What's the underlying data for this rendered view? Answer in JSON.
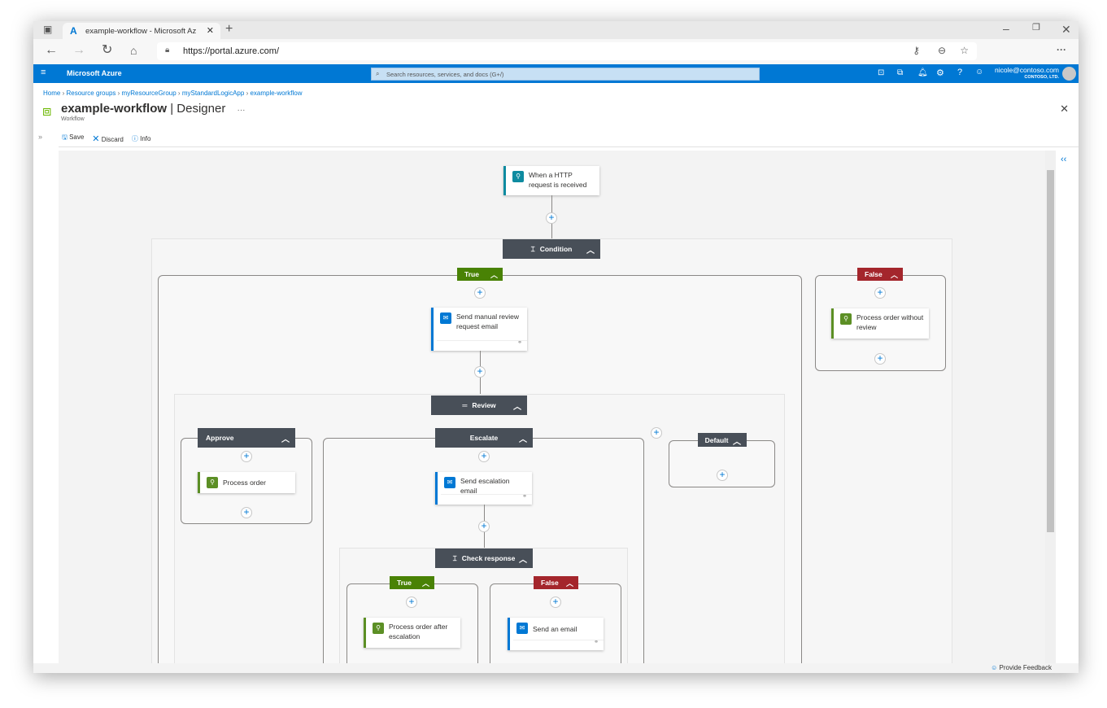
{
  "browser": {
    "tab_title": "example-workflow - Microsoft Az",
    "url": "https://portal.azure.com/",
    "icons": [
      "tab-actions-icon",
      "azure-logo-icon",
      "close-icon",
      "new-tab-icon",
      "back-icon",
      "forward-icon",
      "refresh-icon",
      "home-icon",
      "lock-icon",
      "key-icon",
      "zoom-icon",
      "favorites-icon",
      "more-icon",
      "minimize-icon",
      "restore-icon",
      "close-window-icon"
    ]
  },
  "azure": {
    "brand": "Microsoft Azure",
    "search_placeholder": "Search resources, services, and docs (G+/)",
    "user_email": "nicole@contoso.com",
    "user_org": "CONTOSO, LTD.",
    "header_color": "#0078d4"
  },
  "breadcrumb": [
    "Home",
    "Resource groups",
    "myResourceGroup",
    "myStandardLogicApp",
    "example-workflow"
  ],
  "page": {
    "title": "example-workflow",
    "title_suffix": "| Designer",
    "subtitle": "Workflow",
    "more": "···"
  },
  "toolbar": {
    "save": "Save",
    "discard": "Discard",
    "info": "Info"
  },
  "designer": {
    "trigger": "When a HTTP request is received",
    "condition": "Condition",
    "true_label": "True",
    "false_label": "False",
    "send_manual": "Send manual review request email",
    "process_without": "Process order without review",
    "review": "Review",
    "approve": "Approve",
    "escalate": "Escalate",
    "default": "Default",
    "process_order": "Process order",
    "send_escalation": "Send escalation email",
    "check_response": "Check response",
    "check_true": "True",
    "check_false": "False",
    "process_after": "Process order after escalation",
    "send_email": "Send an email",
    "colors": {
      "true": "#498205",
      "false": "#a4262c",
      "scope_header": "#484f58",
      "outlook": "#0078d4",
      "http": "#0e8ba0",
      "inline_code": "#5c8f25"
    }
  },
  "feedback": "Provide Feedback"
}
